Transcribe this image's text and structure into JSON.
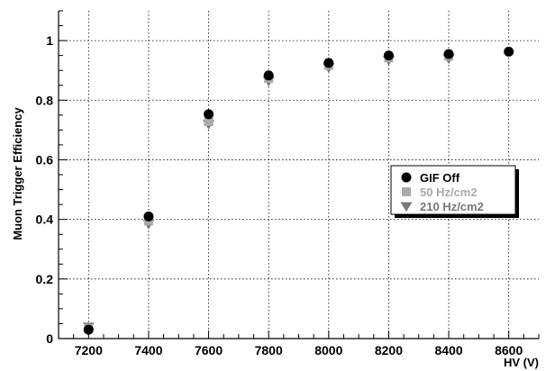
{
  "chart_data": {
    "type": "scatter",
    "xlabel": "HV (V)",
    "ylabel": "Muon Trigger Efficiency",
    "xlim": [
      7100,
      8700
    ],
    "ylim": [
      0,
      1.1
    ],
    "xticks": [
      "7200",
      "7400",
      "7600",
      "7800",
      "8000",
      "8200",
      "8400",
      "8600"
    ],
    "yticks": [
      "0",
      "0.2",
      "0.4",
      "0.6",
      "0.8",
      "1"
    ],
    "grid": true,
    "legend_position": "right",
    "series": [
      {
        "name": "GIF Off",
        "marker": "circle",
        "color": "#000000",
        "x": [
          7200,
          7400,
          7600,
          7800,
          8000,
          8200,
          8400,
          8600
        ],
        "y": [
          0.03,
          0.41,
          0.753,
          0.883,
          0.925,
          0.95,
          0.955,
          0.963
        ]
      },
      {
        "name": "50 Hz/cm2",
        "marker": "square",
        "color": "#aaaaaa",
        "x": [
          7200,
          7400,
          7600,
          7800,
          8000,
          8200,
          8400
        ],
        "y": [
          0.035,
          0.395,
          0.728,
          0.873,
          0.917,
          0.942,
          0.948
        ]
      },
      {
        "name": "210 Hz/cm2",
        "marker": "triangle-down",
        "color": "#777777",
        "x": [
          7200,
          7400,
          7600,
          7800,
          8000,
          8200,
          8400
        ],
        "y": [
          0.04,
          0.385,
          0.72,
          0.865,
          0.91,
          0.935,
          0.94
        ]
      }
    ]
  }
}
